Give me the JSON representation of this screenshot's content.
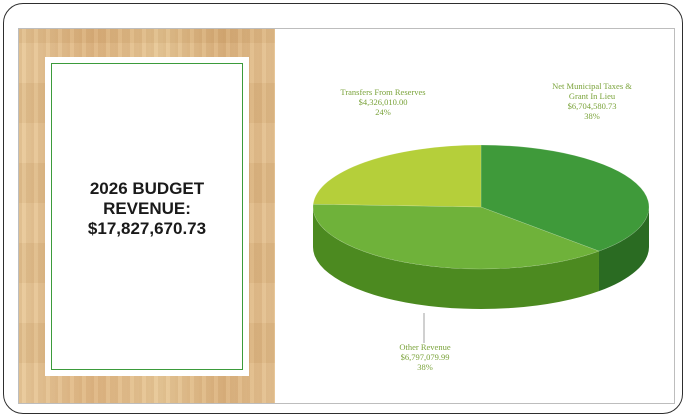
{
  "summary": {
    "line1": "2026 BUDGET",
    "line2": "REVENUE:",
    "line3": "$17,827,670.73"
  },
  "chart_data": {
    "type": "pie",
    "title": "2026 BUDGET REVENUE: $17,827,670.73",
    "slices": [
      {
        "label": "Net Municipal Taxes &",
        "label2": "Grant In Lieu",
        "value": 6704580.73,
        "value_text": "$6,704,580.73",
        "percent": 38,
        "percent_text": "38%",
        "color": "#3f9a3a",
        "side_color": "#2a6b22"
      },
      {
        "label": "Other Revenue",
        "value": 6797079.99,
        "value_text": "$6,797,079.99",
        "percent": 38,
        "percent_text": "38%",
        "color": "#6fb23a",
        "side_color": "#4c8a20"
      },
      {
        "label": "Transfers From Reserves",
        "value": 4326010.0,
        "value_text": "$4,326,010.00",
        "percent": 24,
        "percent_text": "24%",
        "color": "#b5cf3a",
        "side_color": "#8aa322"
      }
    ],
    "legend": "none",
    "style": "3d"
  }
}
